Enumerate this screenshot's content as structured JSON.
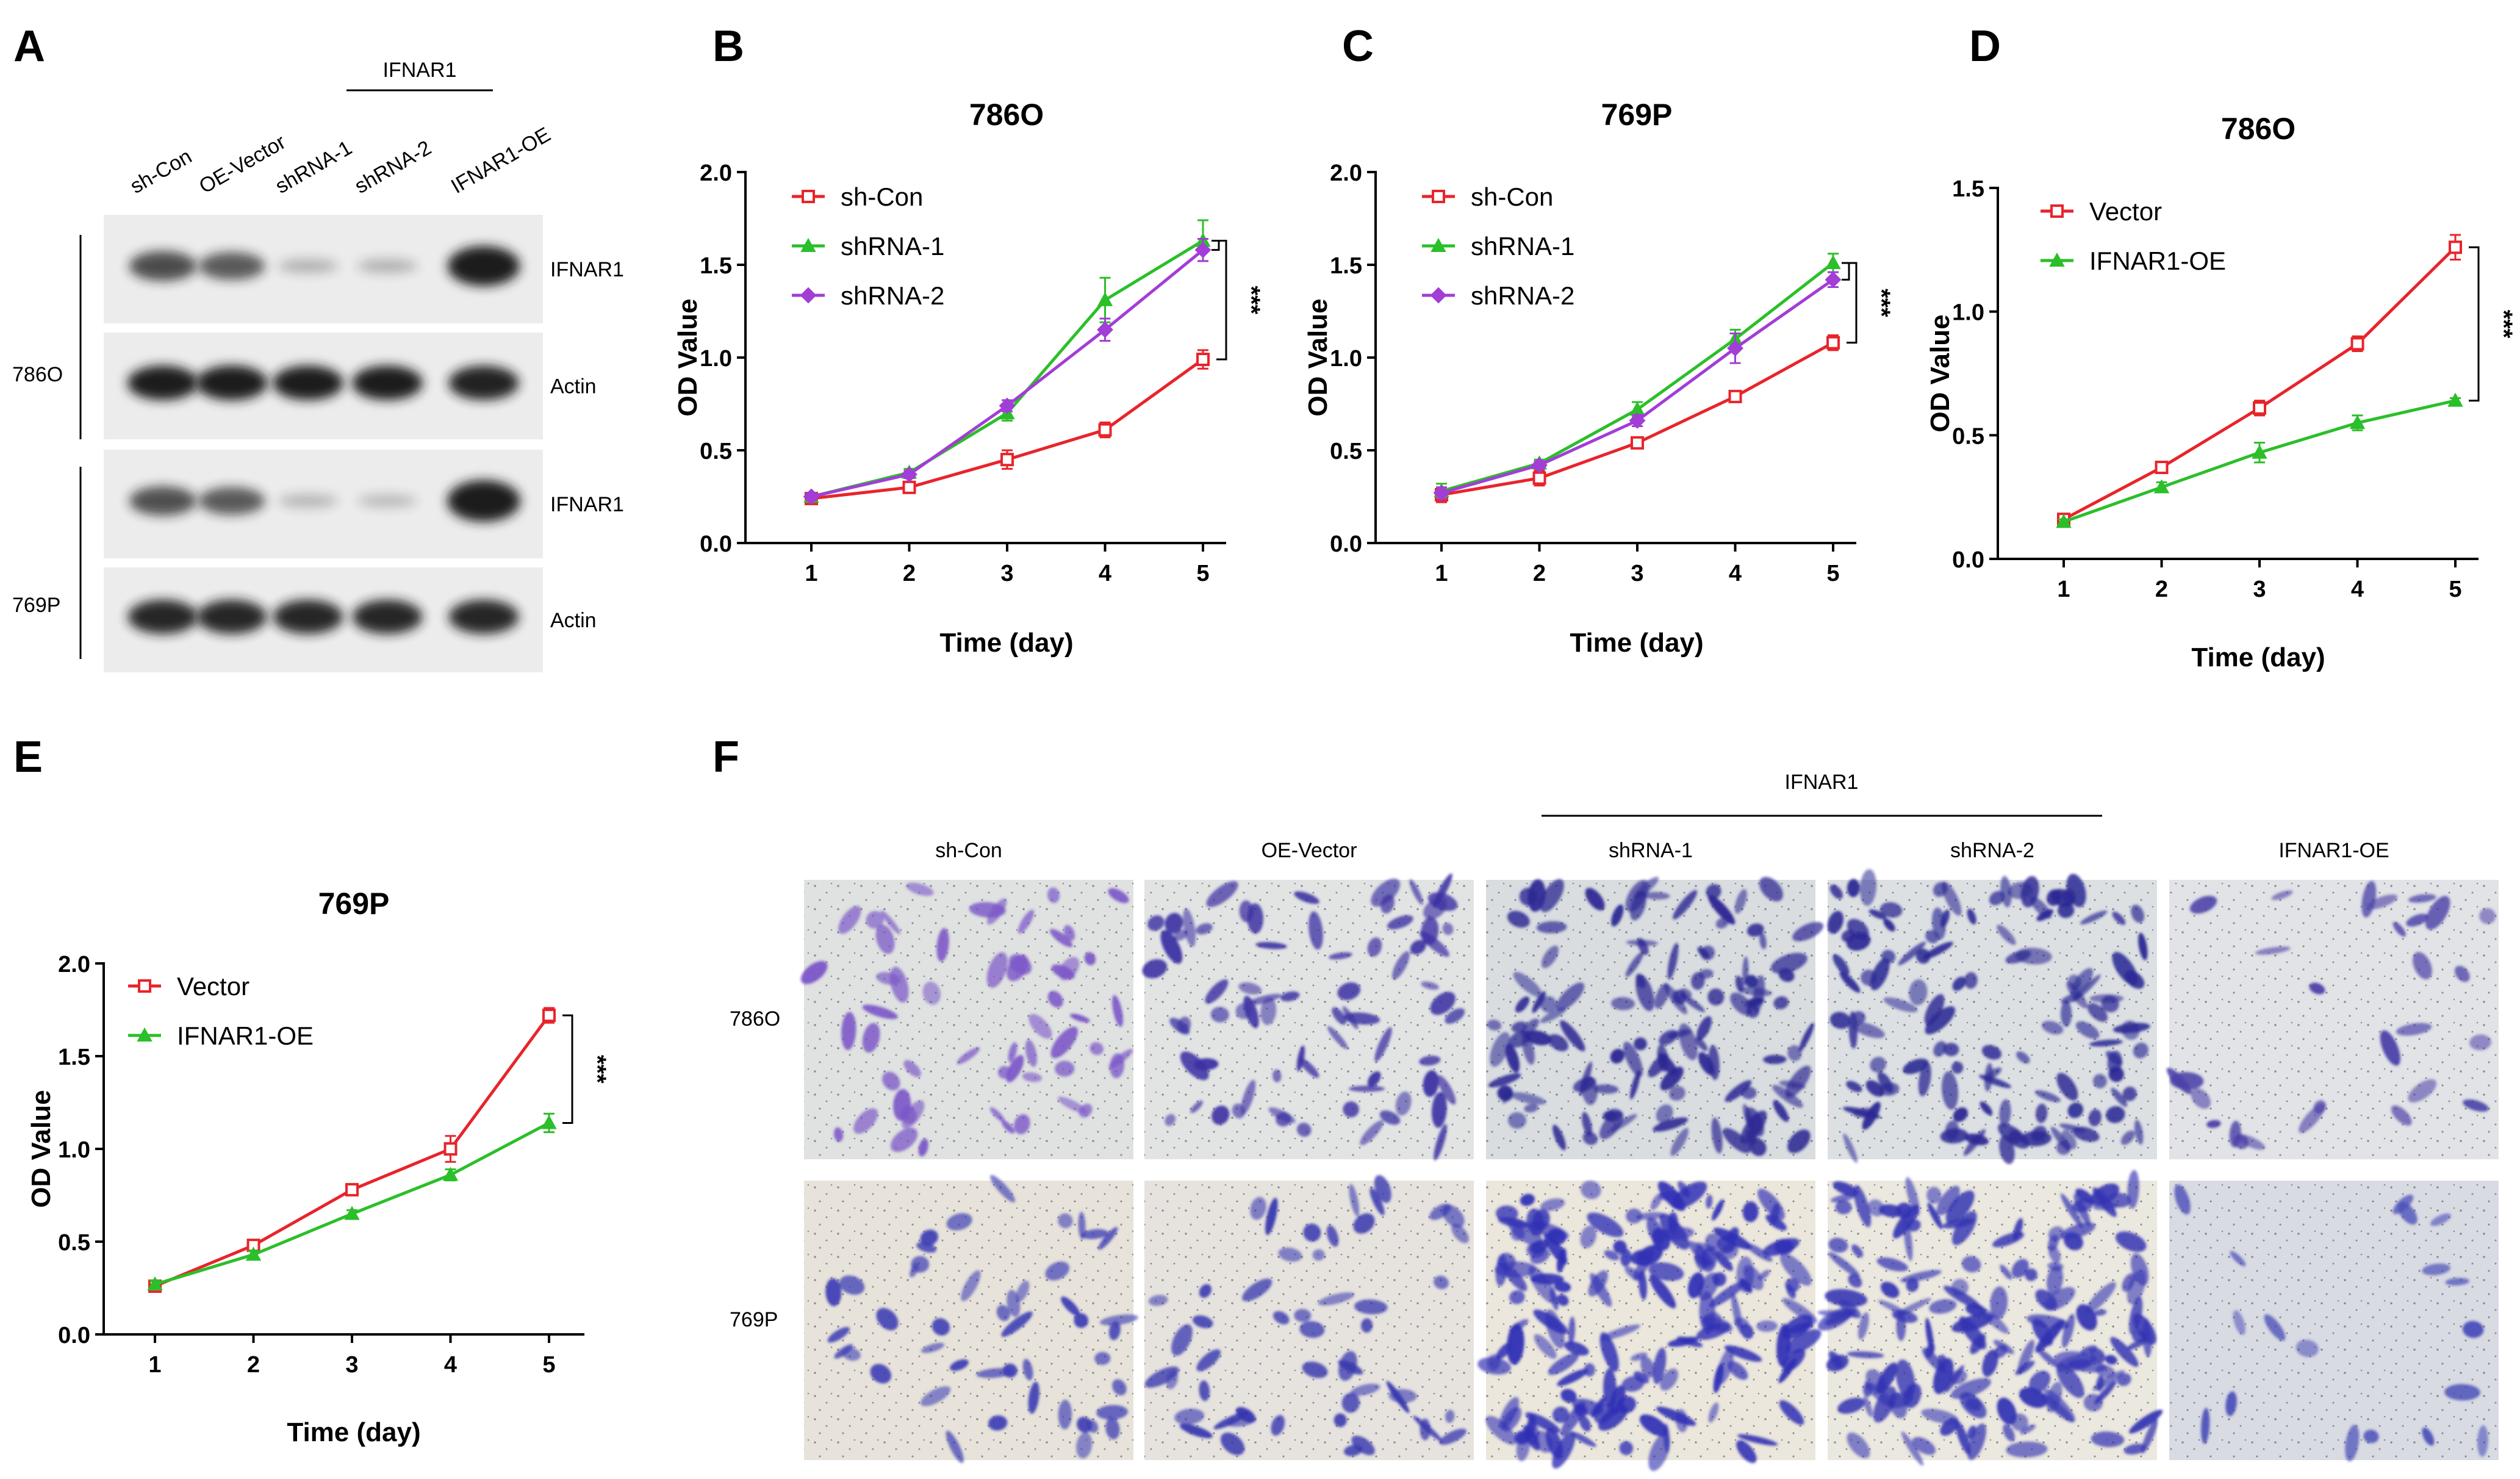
{
  "panel_letters": {
    "A": "A",
    "B": "B",
    "C": "C",
    "D": "D",
    "E": "E",
    "F": "F"
  },
  "western_blot": {
    "lanes": [
      "sh-Con",
      "OE-Vector",
      "shRNA-1",
      "shRNA-2",
      "IFNAR1-OE"
    ],
    "group_label": "IFNAR1",
    "cell_lines": [
      "786O",
      "769P"
    ],
    "bands": [
      "IFNAR1",
      "Actin",
      "IFNAR1",
      "Actin"
    ],
    "band_intensity": [
      [
        0.62,
        0.55,
        0.12,
        0.12,
        0.95
      ],
      [
        0.85,
        0.9,
        0.85,
        0.85,
        0.82
      ],
      [
        0.6,
        0.55,
        0.1,
        0.08,
        1.0
      ],
      [
        0.8,
        0.8,
        0.8,
        0.8,
        0.8
      ]
    ]
  },
  "colors": {
    "red": "#e8242b",
    "green": "#2bbf29",
    "purple": "#a23dd6"
  },
  "chart_data": [
    {
      "panel": "B",
      "type": "line",
      "title": "786O",
      "xlabel": "Time (day)",
      "ylabel": "OD Value",
      "x": [
        1,
        2,
        3,
        4,
        5
      ],
      "ylim": [
        0,
        2.0
      ],
      "yticks": [
        "0.0",
        "0.5",
        "1.0",
        "1.5",
        "2.0"
      ],
      "series": [
        {
          "name": "sh-Con",
          "color": "#e8242b",
          "marker": "square",
          "values": [
            0.24,
            0.3,
            0.45,
            0.61,
            0.99
          ],
          "err": [
            0.02,
            0.02,
            0.05,
            0.04,
            0.05
          ]
        },
        {
          "name": "shRNA-1",
          "color": "#2bbf29",
          "marker": "triangle",
          "values": [
            0.25,
            0.38,
            0.7,
            1.31,
            1.63
          ],
          "err": [
            0.02,
            0.02,
            0.04,
            0.12,
            0.11
          ]
        },
        {
          "name": "shRNA-2",
          "color": "#a23dd6",
          "marker": "diamond",
          "values": [
            0.25,
            0.37,
            0.74,
            1.15,
            1.58
          ],
          "err": [
            0.02,
            0.02,
            0.03,
            0.06,
            0.06
          ]
        }
      ],
      "significance": "***"
    },
    {
      "panel": "C",
      "type": "line",
      "title": "769P",
      "xlabel": "Time (day)",
      "ylabel": "OD Value",
      "x": [
        1,
        2,
        3,
        4,
        5
      ],
      "ylim": [
        0,
        2.0
      ],
      "yticks": [
        "0.0",
        "0.5",
        "1.0",
        "1.5",
        "2.0"
      ],
      "series": [
        {
          "name": "sh-Con",
          "color": "#e8242b",
          "marker": "square",
          "values": [
            0.26,
            0.35,
            0.54,
            0.79,
            1.08
          ],
          "err": [
            0.04,
            0.04,
            0.02,
            0.02,
            0.04
          ]
        },
        {
          "name": "shRNA-1",
          "color": "#2bbf29",
          "marker": "triangle",
          "values": [
            0.28,
            0.43,
            0.72,
            1.1,
            1.51
          ],
          "err": [
            0.04,
            0.02,
            0.04,
            0.05,
            0.05
          ]
        },
        {
          "name": "shRNA-2",
          "color": "#a23dd6",
          "marker": "diamond",
          "values": [
            0.27,
            0.42,
            0.66,
            1.05,
            1.42
          ],
          "err": [
            0.03,
            0.02,
            0.03,
            0.08,
            0.04
          ]
        }
      ],
      "significance": "***"
    },
    {
      "panel": "D",
      "type": "line",
      "title": "786O",
      "xlabel": "Time (day)",
      "ylabel": "OD Value",
      "x": [
        1,
        2,
        3,
        4,
        5
      ],
      "ylim": [
        0,
        1.5
      ],
      "yticks": [
        "0.0",
        "0.5",
        "1.0",
        "1.5"
      ],
      "series": [
        {
          "name": "Vector",
          "color": "#e8242b",
          "marker": "square",
          "values": [
            0.16,
            0.37,
            0.61,
            0.87,
            1.26
          ],
          "err": [
            0.01,
            0.02,
            0.03,
            0.03,
            0.05
          ]
        },
        {
          "name": "IFNAR1-OE",
          "color": "#2bbf29",
          "marker": "triangle",
          "values": [
            0.15,
            0.29,
            0.43,
            0.55,
            0.64
          ],
          "err": [
            0.01,
            0.02,
            0.04,
            0.03,
            0.01
          ]
        }
      ],
      "significance": "***"
    },
    {
      "panel": "E",
      "type": "line",
      "title": "769P",
      "xlabel": "Time (day)",
      "ylabel": "OD Value",
      "x": [
        1,
        2,
        3,
        4,
        5
      ],
      "ylim": [
        0,
        2.0
      ],
      "yticks": [
        "0.0",
        "0.5",
        "1.0",
        "1.5",
        "2.0"
      ],
      "series": [
        {
          "name": "Vector",
          "color": "#e8242b",
          "marker": "square",
          "values": [
            0.26,
            0.48,
            0.78,
            1.0,
            1.72
          ],
          "err": [
            0.02,
            0.02,
            0.03,
            0.07,
            0.04
          ]
        },
        {
          "name": "IFNAR1-OE",
          "color": "#2bbf29",
          "marker": "triangle",
          "values": [
            0.27,
            0.43,
            0.65,
            0.86,
            1.14
          ],
          "err": [
            0.02,
            0.02,
            0.02,
            0.03,
            0.05
          ]
        }
      ],
      "significance": "***"
    }
  ],
  "transwell": {
    "columns": [
      "sh-Con",
      "OE-Vector",
      "shRNA-1",
      "shRNA-2",
      "IFNAR1-OE"
    ],
    "group_label": "IFNAR1",
    "rows": [
      "786O",
      "769P"
    ]
  }
}
